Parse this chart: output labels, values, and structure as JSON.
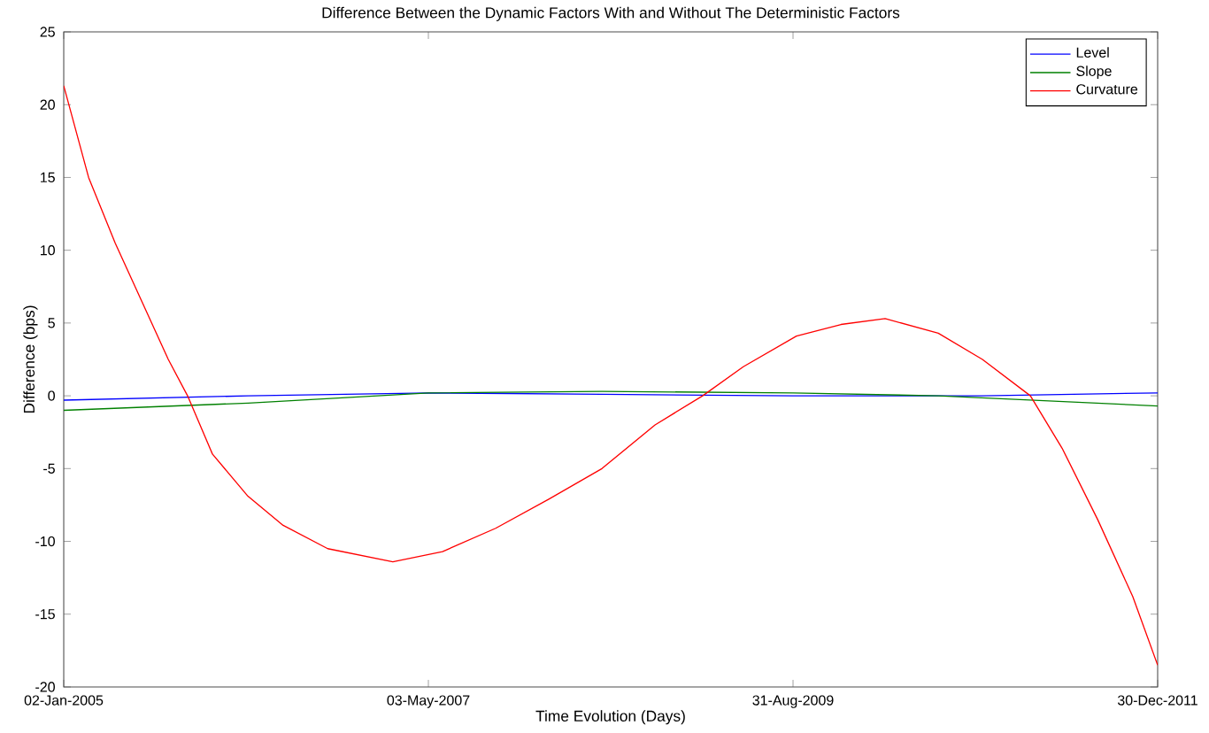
{
  "chart_data": {
    "type": "line",
    "title": "Difference Between the Dynamic Factors With and Without The Deterministic Factors",
    "xlabel": "Time Evolution (Days)",
    "ylabel": "Difference (bps)",
    "xlim": [
      "2005-01-02",
      "2011-12-30"
    ],
    "xticks": [
      {
        "value": "2005-01-02",
        "label": "02-Jan-2005"
      },
      {
        "value": "2007-05-03",
        "label": "03-May-2007"
      },
      {
        "value": "2009-08-31",
        "label": "31-Aug-2009"
      },
      {
        "value": "2011-12-30",
        "label": "30-Dec-2011"
      }
    ],
    "ylim": [
      -20,
      25
    ],
    "yticks": [
      -20,
      -15,
      -10,
      -5,
      0,
      5,
      10,
      15,
      20,
      25
    ],
    "grid": false,
    "legend": "top right",
    "series": [
      {
        "name": "Level",
        "color": "#0000ff",
        "x": [
          "2005-01-02",
          "2006-03-08",
          "2007-05-03",
          "2008-06-11",
          "2009-08-31",
          "2010-11-16",
          "2011-12-30"
        ],
        "values": [
          -0.3,
          0.0,
          0.2,
          0.1,
          0.0,
          0.0,
          0.2
        ]
      },
      {
        "name": "Slope",
        "color": "#008000",
        "x": [
          "2005-01-02",
          "2006-03-08",
          "2007-05-03",
          "2008-06-11",
          "2009-08-31",
          "2010-08-05",
          "2011-12-30"
        ],
        "values": [
          -1.0,
          -0.5,
          0.2,
          0.3,
          0.2,
          0.0,
          -0.7
        ]
      },
      {
        "name": "Curvature",
        "color": "#ff0000",
        "x": [
          "2005-01-02",
          "2005-03-01",
          "2005-05-02",
          "2005-07-03",
          "2005-09-03",
          "2005-10-18",
          "2005-12-15",
          "2006-03-08",
          "2006-05-29",
          "2006-09-10",
          "2007-02-09",
          "2007-06-05",
          "2007-10-07",
          "2008-02-08",
          "2008-06-11",
          "2008-10-13",
          "2009-02-01",
          "2009-05-07",
          "2009-09-08",
          "2009-12-21",
          "2010-04-03",
          "2010-08-05",
          "2010-11-16",
          "2011-03-08",
          "2011-05-21",
          "2011-08-12",
          "2011-11-02",
          "2011-12-30"
        ],
        "values": [
          21.3,
          15.0,
          10.5,
          6.5,
          2.5,
          0.0,
          -4.0,
          -6.9,
          -8.9,
          -10.5,
          -11.4,
          -10.7,
          -9.1,
          -7.1,
          -5.0,
          -2.0,
          0.0,
          2.0,
          4.1,
          4.9,
          5.3,
          4.3,
          2.5,
          0.0,
          -3.6,
          -8.5,
          -13.8,
          -18.5
        ]
      }
    ]
  }
}
